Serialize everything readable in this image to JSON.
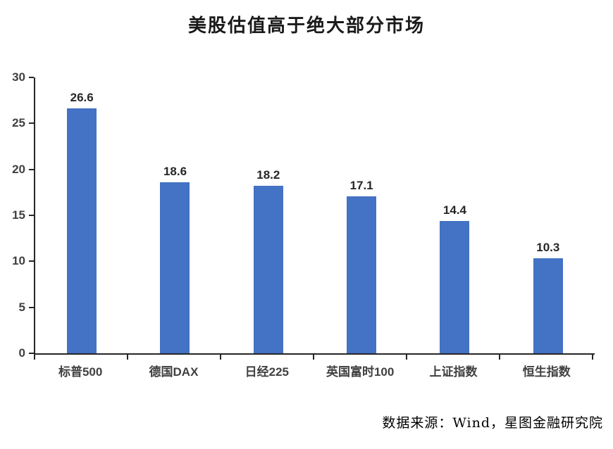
{
  "title": "美股估值高于绝大部分市场",
  "source": "数据来源：Wind，星图金融研究院",
  "chart_data": {
    "type": "bar",
    "title": "美股估值高于绝大部分市场",
    "categories": [
      "标普500",
      "德国DAX",
      "日经225",
      "英国富时100",
      "上证指数",
      "恒生指数"
    ],
    "values": [
      26.6,
      18.6,
      18.2,
      17.1,
      14.4,
      10.3
    ],
    "xlabel": "",
    "ylabel": "",
    "ylim": [
      0,
      30
    ],
    "yticks": [
      0,
      5,
      10,
      15,
      20,
      25,
      30
    ],
    "grid": false,
    "legend": false,
    "bar_color": "#4472C4",
    "axis_color": "#262626",
    "tick_label_color": "#404040",
    "annotation_source": "数据来源：Wind，星图金融研究院"
  }
}
